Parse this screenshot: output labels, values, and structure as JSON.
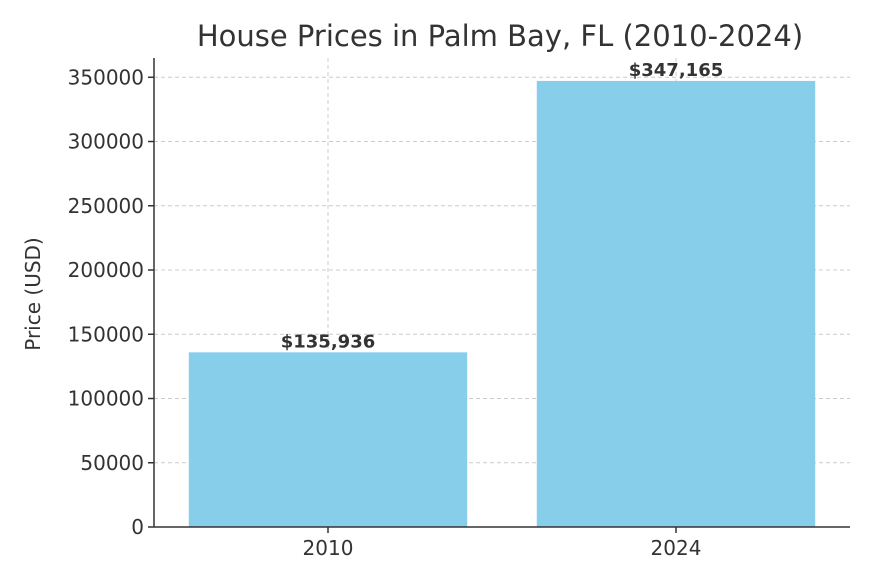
{
  "chart_data": {
    "type": "bar",
    "title": "House Prices in Palm Bay, FL (2010-2024)",
    "xlabel": "",
    "ylabel": "Price (USD)",
    "categories": [
      "2010",
      "2024"
    ],
    "values": [
      135936,
      347165
    ],
    "data_labels": [
      "$135,936",
      "$347,165"
    ],
    "ylim": [
      0,
      365000
    ],
    "yticks": [
      0,
      50000,
      100000,
      150000,
      200000,
      250000,
      300000,
      350000
    ],
    "ytick_labels": [
      "0",
      "50000",
      "100000",
      "150000",
      "200000",
      "250000",
      "300000",
      "350000"
    ],
    "grid": true,
    "legend": "none",
    "bar_color": "#87CEEB"
  }
}
